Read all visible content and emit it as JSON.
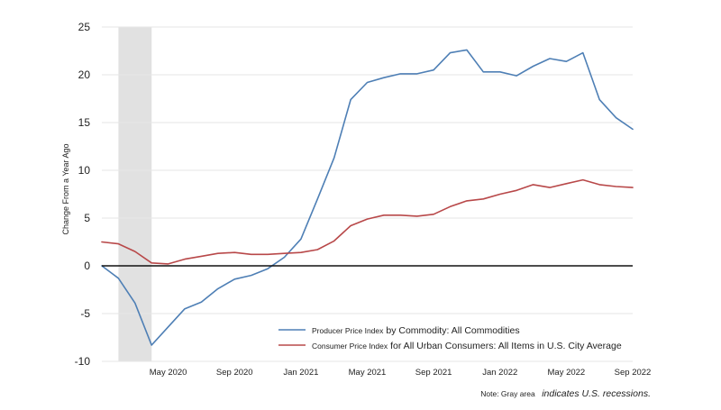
{
  "chart_data": {
    "type": "line",
    "ylabel": "Change From a Year Ago",
    "xlabel": "",
    "ylim": [
      -10,
      25
    ],
    "yticks": [
      -10,
      -5,
      0,
      5,
      10,
      15,
      20,
      25
    ],
    "x": [
      "2020-01",
      "2020-02",
      "2020-03",
      "2020-04",
      "2020-05",
      "2020-06",
      "2020-07",
      "2020-08",
      "2020-09",
      "2020-10",
      "2020-11",
      "2020-12",
      "2021-01",
      "2021-02",
      "2021-03",
      "2021-04",
      "2021-05",
      "2021-06",
      "2021-07",
      "2021-08",
      "2021-09",
      "2021-10",
      "2021-11",
      "2021-12",
      "2022-01",
      "2022-02",
      "2022-03",
      "2022-04",
      "2022-05",
      "2022-06",
      "2022-07",
      "2022-08",
      "2022-09"
    ],
    "xlim": [
      "2020-01",
      "2022-09"
    ],
    "xtick_dates": [
      "2020-05",
      "2020-09",
      "2021-01",
      "2021-05",
      "2021-09",
      "2022-01",
      "2022-05",
      "2022-09"
    ],
    "xtick_labels": [
      "May 2020",
      "Sep 2020",
      "Jan 2021",
      "May 2021",
      "Sep 2021",
      "Jan 2022",
      "May 2022",
      "Sep 2022"
    ],
    "recession": {
      "start": "2020-02",
      "end": "2020-04"
    },
    "series": [
      {
        "name": "Producer Price Index by Commodity: All Commodities",
        "color": "#4e7fb5",
        "values": [
          0.0,
          -1.3,
          -3.9,
          -8.3,
          -6.4,
          -4.5,
          -3.8,
          -2.4,
          -1.4,
          -1.0,
          -0.3,
          0.9,
          2.8,
          7.0,
          11.3,
          17.4,
          19.2,
          19.7,
          20.1,
          20.1,
          20.5,
          22.3,
          22.6,
          20.3,
          20.3,
          19.9,
          20.9,
          21.7,
          21.4,
          22.3,
          17.4,
          15.5,
          14.3
        ]
      },
      {
        "name": "Consumer Price Index for All Urban Consumers: All Items in U.S. City Average",
        "color": "#b84849",
        "values": [
          2.5,
          2.3,
          1.5,
          0.3,
          0.2,
          0.7,
          1.0,
          1.3,
          1.4,
          1.2,
          1.2,
          1.3,
          1.4,
          1.7,
          2.6,
          4.2,
          4.9,
          5.3,
          5.3,
          5.2,
          5.4,
          6.2,
          6.8,
          7.0,
          7.5,
          7.9,
          8.5,
          8.2,
          8.6,
          9.0,
          8.5,
          8.3,
          8.2
        ]
      }
    ],
    "legend_position": "bottom-center",
    "grid": true,
    "zero_line": true
  },
  "note": {
    "prefix": "Note: Gray area",
    "text": "indicates U.S. recessions."
  }
}
